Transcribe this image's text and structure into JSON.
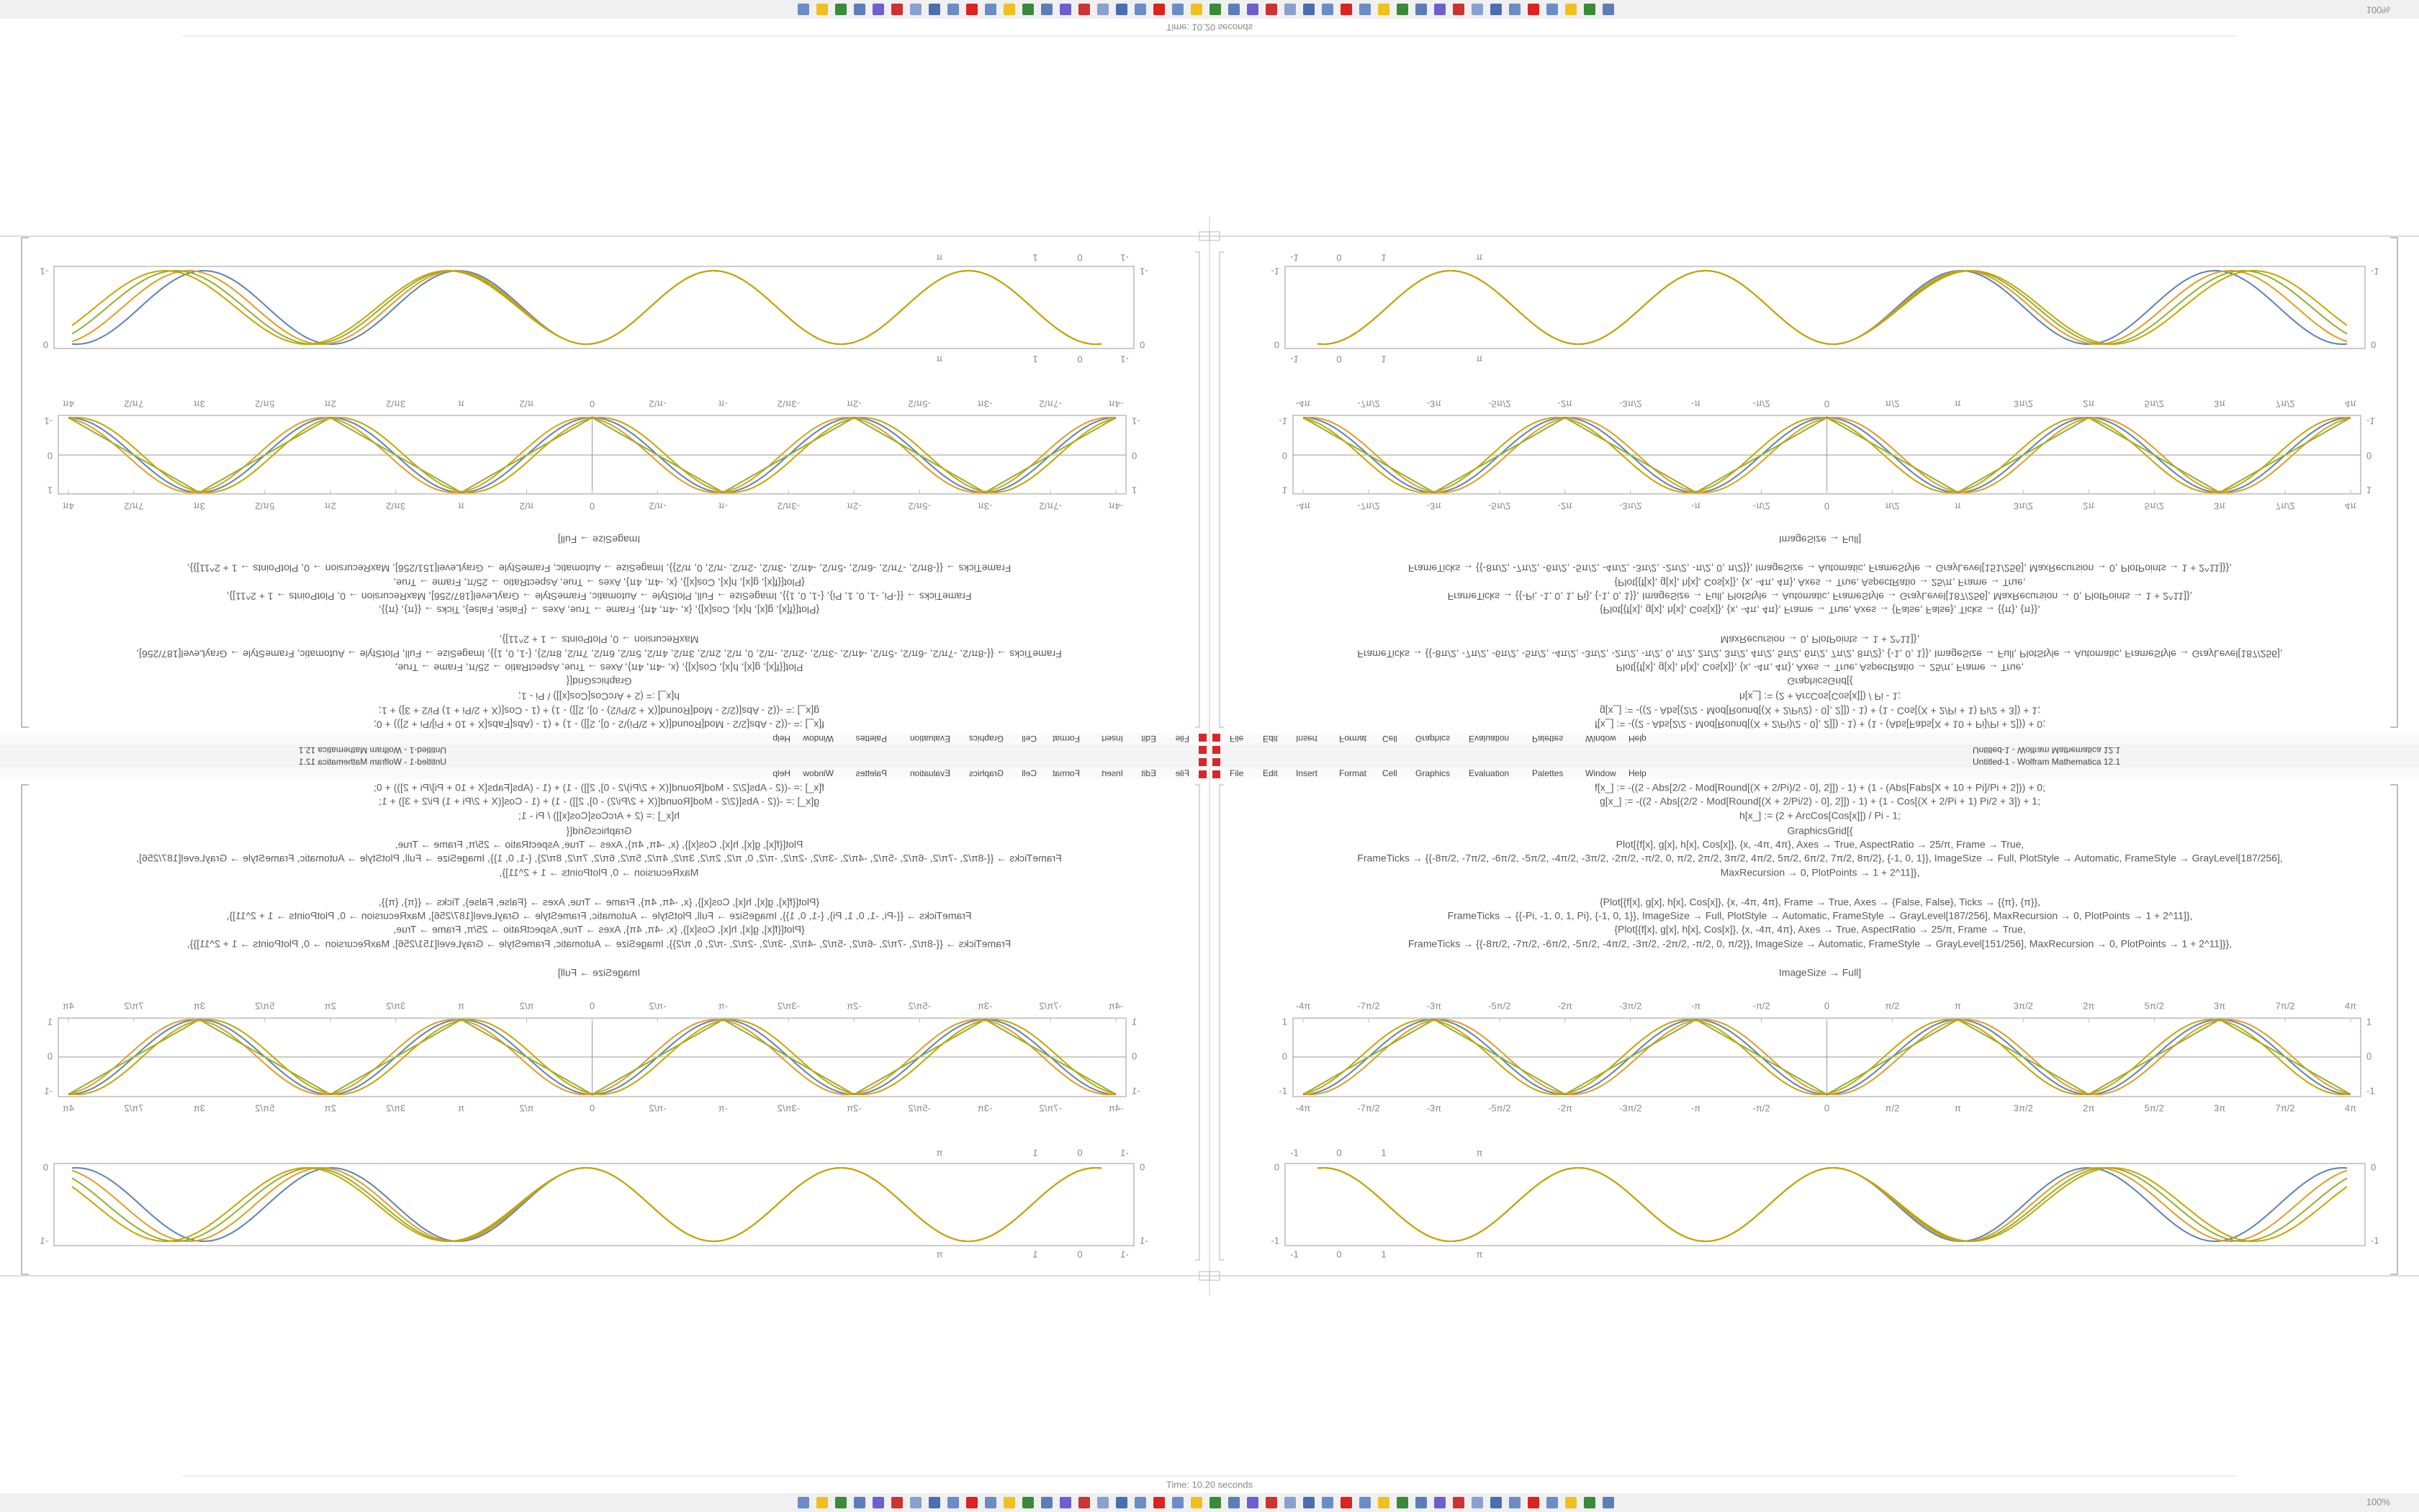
{
  "window": {
    "title": "Untitled-1 - Wolfram Mathematica 12.1",
    "menu": [
      "File",
      "Edit",
      "Insert",
      "Format",
      "Cell",
      "Graphics",
      "Evaluation",
      "Palettes",
      "Window",
      "Help"
    ],
    "status": "Time: 10.20 seconds",
    "zoom": "100%"
  },
  "notebook": {
    "code": [
      "f[x_] := -((2 - Abs[2/2 - Mod[Round[(X + 2/Pi)/2 - 0], 2]]) - 1) + (1 - (Abs[Fabs[X + 10 + Pi]/Pi + 2])) + 0;",
      "g[x_] := -((2 - Abs[(2/2 - Mod[Round[(X + 2/Pi/2) - 0], 2]]) - 1) + (1 - Cos[(X + 2/Pi + 1) Pi/2 + 3]) + 1;",
      "h[x_] := (2 + ArcCos[Cos[x]]) / Pi - 1;",
      "GraphicsGrid[{",
      "Plot[{f[x], g[x], h[x], Cos[x]}, {x, -4π, 4π}, Axes → True, AspectRatio → 25/π, Frame → True,",
      "FrameTicks → {{-8π/2, -7π/2, -6π/2, -5π/2, -4π/2, -3π/2, -2π/2, -π/2, 0, π/2, 2π/2, 3π/2, 4π/2, 5π/2, 6π/2, 7π/2, 8π/2}, {-1, 0, 1}}, ImageSize → Full, PlotStyle → Automatic, FrameStyle → GrayLevel[187/256],",
      "MaxRecursion → 0, PlotPoints → 1 + 2^11]},",
      "{Plot[{f[x], g[x], h[x], Cos[x]}, {x, -4π, 4π}, Frame → True, Axes → {False, False}, Ticks → {{π}, {π}},",
      "FrameTicks → {{-Pi, -1, 0, 1, Pi}, {-1, 0, 1}}, ImageSize → Full, PlotStyle → Automatic, FrameStyle → GrayLevel[187/256], MaxRecursion → 0, PlotPoints → 1 + 2^11]},",
      "{Plot[{f[x], g[x], h[x], Cos[x]}, {x, -4π, 4π}, Axes → True, AspectRatio → 25/π, Frame → True,",
      "FrameTicks → {{-8π/2, -7π/2, -6π/2, -5π/2, -4π/2, -3π/2, -2π/2, -π/2, 0, π/2}}, ImageSize → Automatic, FrameStyle → GrayLevel[151/256], MaxRecursion → 0, PlotPoints → 1 + 2^11]}},",
      "ImageSize → Full]"
    ],
    "plot1": {
      "xticks": [
        "-4π",
        "-7π/2",
        "-3π",
        "-5π/2",
        "-2π",
        "-3π/2",
        "-π",
        "-π/2",
        "0",
        "π/2",
        "π",
        "3π/2",
        "2π",
        "5π/2",
        "3π",
        "7π/2",
        "4π"
      ],
      "yticks": [
        "1",
        "0",
        "-1"
      ]
    },
    "plot2": {
      "xticks": [
        "-1",
        "0",
        "1",
        "π"
      ],
      "yticks": [
        "0",
        "-1"
      ]
    }
  }
}
